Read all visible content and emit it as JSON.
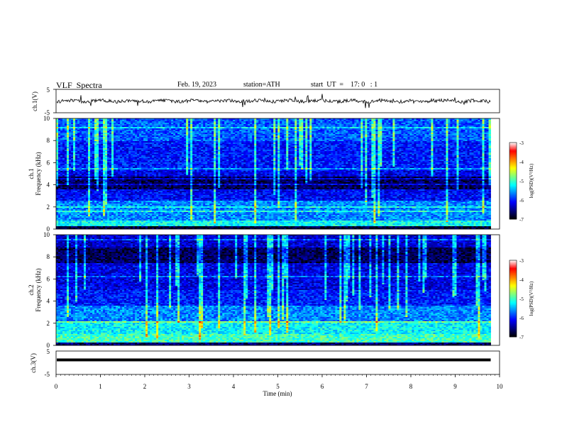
{
  "header": {
    "title": "VLF  Spectra",
    "date": "Feb. 19, 2023",
    "station": "station=ATH",
    "start_ut": "start  UT  =    17: 0   : 1"
  },
  "colors": {
    "cmap": [
      "#000000",
      "#00007f",
      "#0000ff",
      "#007fff",
      "#00ffff",
      "#7fff7f",
      "#ffff00",
      "#ff7f00",
      "#ff0000",
      "#ffffff"
    ]
  },
  "chart_data": [
    {
      "type": "line",
      "id": "ch1",
      "ylabel": "ch.1(V)",
      "ylim": [
        -5,
        5
      ],
      "yticks": [
        "5",
        "-5"
      ],
      "xlim": [
        0,
        10
      ],
      "trace_level": 0,
      "trace_end_min": 9.8
    },
    {
      "type": "heatmap",
      "id": "ch1_spec",
      "ylabel": "ch.1\nFrequency (kHz)",
      "ylabel_line1": "ch.1",
      "ylabel_line2": "Frequency (kHz)",
      "ylim": [
        0,
        10
      ],
      "yticks": [
        "0",
        "2",
        "4",
        "6",
        "8",
        "10"
      ],
      "xlim": [
        0,
        10
      ],
      "data_end_min": 9.8,
      "colorbar": {
        "label": "log(PSD)(V²/Hz)",
        "ticks": [
          "-3",
          "-4",
          "-5",
          "-6",
          "-7"
        ],
        "range": [
          -7,
          -3
        ]
      }
    },
    {
      "type": "heatmap",
      "id": "ch2_spec",
      "ylabel_line1": "ch.2",
      "ylabel_line2": "Frequency (kHz)",
      "ylim": [
        0,
        10
      ],
      "yticks": [
        "0",
        "2",
        "4",
        "6",
        "8",
        "10"
      ],
      "xlim": [
        0,
        10
      ],
      "data_end_min": 9.8,
      "colorbar": {
        "label": "log(PSD)(V²/Hz)",
        "ticks": [
          "-3",
          "-4",
          "-5",
          "-6",
          "-7"
        ],
        "range": [
          -7,
          -3
        ]
      }
    },
    {
      "type": "line",
      "id": "ch3",
      "ylabel": "ch.3(V)",
      "ylim": [
        -5,
        5
      ],
      "yticks": [
        "5",
        "-5"
      ],
      "xlim": [
        0,
        10
      ],
      "trace_level": 1.2,
      "trace_end_min": 9.8,
      "xlabel": "Time  (min)",
      "xticks": [
        "0",
        "1",
        "2",
        "3",
        "4",
        "5",
        "6",
        "7",
        "8",
        "9",
        "10"
      ]
    }
  ]
}
